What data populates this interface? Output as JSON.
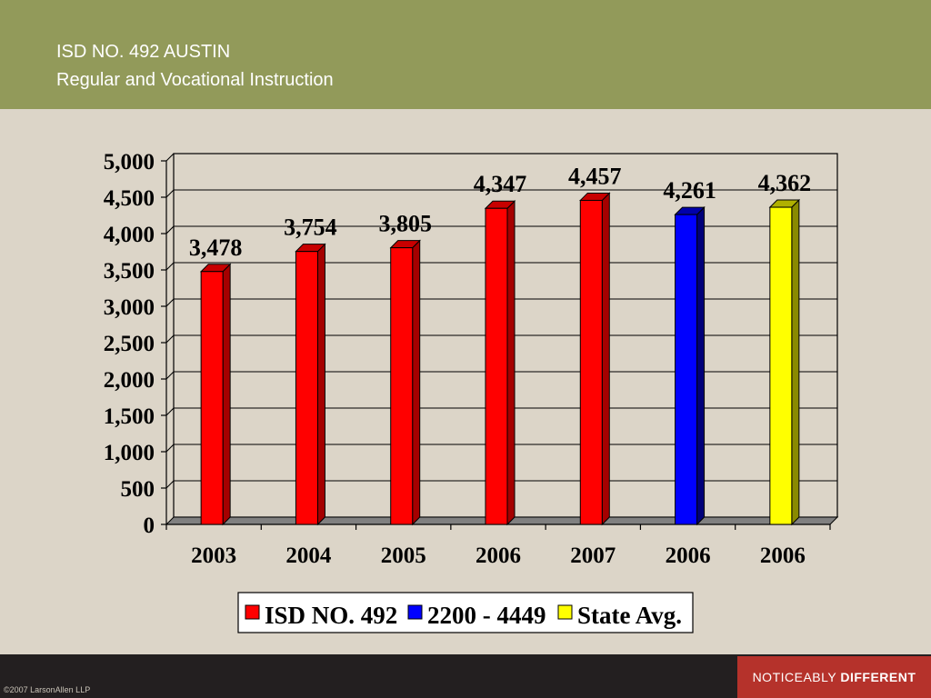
{
  "header": {
    "title": "ISD NO. 492 AUSTIN",
    "subtitle": "Regular and Vocational Instruction"
  },
  "footer": {
    "copyright": "©2007 LarsonAllen LLP",
    "tagline_light": "NOTICEABLY",
    "tagline_bold": "DIFFERENT"
  },
  "colors": {
    "header_bg": "#929a5a",
    "page_bg": "#dcd5c8",
    "footer_bg": "#231f20",
    "tagline_bg": "#b5322b"
  },
  "chart_data": {
    "type": "bar",
    "title": "",
    "xlabel": "",
    "ylabel": "",
    "ylim": [
      0,
      5000
    ],
    "yticks": [
      0,
      500,
      1000,
      1500,
      2000,
      2500,
      3000,
      3500,
      4000,
      4500,
      5000
    ],
    "ytick_labels": [
      "0",
      "500",
      "1,000",
      "1,500",
      "2,000",
      "2,500",
      "3,000",
      "3,500",
      "4,000",
      "4,500",
      "5,000"
    ],
    "grid": true,
    "legend_position": "bottom",
    "categories": [
      "2003",
      "2004",
      "2005",
      "2006",
      "2007",
      "2006",
      "2006"
    ],
    "series": [
      {
        "name": "ISD NO. 492",
        "color": "#ff0000",
        "side_color": "#a50000",
        "top_color": "#c80000",
        "values": [
          3478,
          3754,
          3805,
          4347,
          4457,
          null,
          null
        ],
        "labels": [
          "3,478",
          "3,754",
          "3,805",
          "4,347",
          "4,457",
          "",
          ""
        ]
      },
      {
        "name": "2200 - 4449",
        "color": "#0000ff",
        "side_color": "#00007a",
        "top_color": "#0000aa",
        "values": [
          null,
          null,
          null,
          null,
          null,
          4261,
          null
        ],
        "labels": [
          "",
          "",
          "",
          "",
          "",
          "4,261",
          ""
        ]
      },
      {
        "name": "State Avg.",
        "color": "#ffff00",
        "side_color": "#8a8a00",
        "top_color": "#b0b000",
        "values": [
          null,
          null,
          null,
          null,
          null,
          null,
          4362
        ],
        "labels": [
          "",
          "",
          "",
          "",
          "",
          "",
          "4,362"
        ]
      }
    ]
  }
}
